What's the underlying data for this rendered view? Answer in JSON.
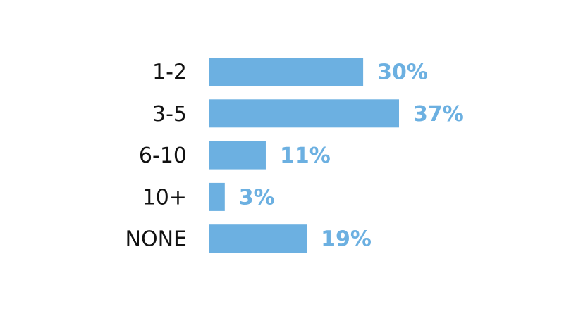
{
  "chart_data": {
    "type": "bar",
    "orientation": "horizontal",
    "categories": [
      "1-2",
      "3-5",
      "6-10",
      "10+",
      "NONE"
    ],
    "values": [
      30,
      37,
      11,
      3,
      19
    ],
    "value_labels": [
      "30%",
      "37%",
      "11%",
      "3%",
      "19%"
    ],
    "color": "#6cb0e1"
  }
}
